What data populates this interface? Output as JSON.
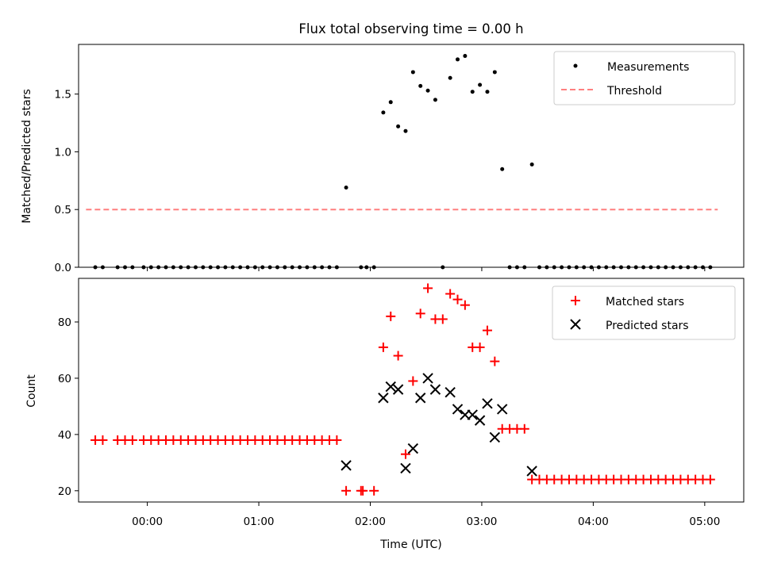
{
  "chart_data": [
    {
      "type": "scatter",
      "title": "Flux total observing time = 0.00 h",
      "ylabel": "Matched/Predicted stars",
      "xlabel": "",
      "ylim": [
        0,
        1.93
      ],
      "yticks": [
        "0.0",
        "0.5",
        "1.0",
        "1.5"
      ],
      "yticks_values": [
        0,
        0.5,
        1.0,
        1.5
      ],
      "legend_position": "top-right",
      "threshold": {
        "name": "Threshold",
        "color": "#ff7f7f",
        "x_start": -33,
        "x_end": 307,
        "value": 0.5
      },
      "series": [
        {
          "name": "Measurements",
          "color": "#000000",
          "points": [
            [
              -28,
              0
            ],
            [
              -24,
              0
            ],
            [
              -16,
              0
            ],
            [
              -12,
              0
            ],
            [
              -8,
              0
            ],
            [
              -2,
              0
            ],
            [
              2,
              0
            ],
            [
              6,
              0
            ],
            [
              10,
              0
            ],
            [
              14,
              0
            ],
            [
              18,
              0
            ],
            [
              22,
              0
            ],
            [
              26,
              0
            ],
            [
              30,
              0
            ],
            [
              34,
              0
            ],
            [
              38,
              0
            ],
            [
              42,
              0
            ],
            [
              46,
              0
            ],
            [
              50,
              0
            ],
            [
              54,
              0
            ],
            [
              58,
              0
            ],
            [
              62,
              0
            ],
            [
              66,
              0
            ],
            [
              70,
              0
            ],
            [
              74,
              0
            ],
            [
              78,
              0
            ],
            [
              82,
              0
            ],
            [
              86,
              0
            ],
            [
              90,
              0
            ],
            [
              94,
              0
            ],
            [
              98,
              0
            ],
            [
              102,
              0
            ],
            [
              107,
              0.69
            ],
            [
              115,
              0
            ],
            [
              118,
              0
            ],
            [
              122,
              0
            ],
            [
              127,
              1.34
            ],
            [
              131,
              1.43
            ],
            [
              135,
              1.22
            ],
            [
              139,
              1.18
            ],
            [
              143,
              1.69
            ],
            [
              147,
              1.57
            ],
            [
              151,
              1.53
            ],
            [
              155,
              1.45
            ],
            [
              159,
              0
            ],
            [
              163,
              1.64
            ],
            [
              167,
              1.8
            ],
            [
              171,
              1.83
            ],
            [
              175,
              1.52
            ],
            [
              179,
              1.58
            ],
            [
              183,
              1.52
            ],
            [
              187,
              1.69
            ],
            [
              191,
              0.85
            ],
            [
              195,
              0
            ],
            [
              199,
              0
            ],
            [
              203,
              0
            ],
            [
              207,
              0.89
            ],
            [
              211,
              0
            ],
            [
              215,
              0
            ],
            [
              219,
              0
            ],
            [
              223,
              0
            ],
            [
              227,
              0
            ],
            [
              231,
              0
            ],
            [
              235,
              0
            ],
            [
              239,
              0
            ],
            [
              243,
              0
            ],
            [
              247,
              0
            ],
            [
              251,
              0
            ],
            [
              255,
              0
            ],
            [
              259,
              0
            ],
            [
              263,
              0
            ],
            [
              267,
              0
            ],
            [
              271,
              0
            ],
            [
              275,
              0
            ],
            [
              279,
              0
            ],
            [
              283,
              0
            ],
            [
              287,
              0
            ],
            [
              291,
              0
            ],
            [
              295,
              0
            ],
            [
              299,
              0
            ],
            [
              303,
              0
            ]
          ]
        }
      ]
    },
    {
      "type": "scatter",
      "title": "",
      "ylabel": "Count",
      "xlabel": "Time (UTC)",
      "ylim": [
        16,
        95.5
      ],
      "yticks": [
        "20",
        "40",
        "60",
        "80"
      ],
      "yticks_values": [
        20,
        40,
        60,
        80
      ],
      "xlim": [
        -37,
        321
      ],
      "xticks": [
        "00:00",
        "01:00",
        "02:00",
        "03:00",
        "04:00",
        "05:00"
      ],
      "xticks_values": [
        0,
        60,
        120,
        180,
        240,
        300
      ],
      "legend_position": "top-right",
      "series": [
        {
          "name": "Matched stars",
          "color": "#ff0000",
          "marker": "plus",
          "points": [
            [
              -28,
              38
            ],
            [
              -24,
              38
            ],
            [
              -16,
              38
            ],
            [
              -12,
              38
            ],
            [
              -8,
              38
            ],
            [
              -2,
              38
            ],
            [
              2,
              38
            ],
            [
              6,
              38
            ],
            [
              10,
              38
            ],
            [
              14,
              38
            ],
            [
              18,
              38
            ],
            [
              22,
              38
            ],
            [
              26,
              38
            ],
            [
              30,
              38
            ],
            [
              34,
              38
            ],
            [
              38,
              38
            ],
            [
              42,
              38
            ],
            [
              46,
              38
            ],
            [
              50,
              38
            ],
            [
              54,
              38
            ],
            [
              58,
              38
            ],
            [
              62,
              38
            ],
            [
              66,
              38
            ],
            [
              70,
              38
            ],
            [
              74,
              38
            ],
            [
              78,
              38
            ],
            [
              82,
              38
            ],
            [
              86,
              38
            ],
            [
              90,
              38
            ],
            [
              94,
              38
            ],
            [
              98,
              38
            ],
            [
              102,
              38
            ],
            [
              107,
              20
            ],
            [
              115,
              20
            ],
            [
              116,
              20
            ],
            [
              122,
              20
            ],
            [
              127,
              71
            ],
            [
              131,
              82
            ],
            [
              135,
              68
            ],
            [
              139,
              33
            ],
            [
              143,
              59
            ],
            [
              147,
              83
            ],
            [
              151,
              92
            ],
            [
              155,
              81
            ],
            [
              159,
              81
            ],
            [
              163,
              90
            ],
            [
              167,
              88
            ],
            [
              171,
              86
            ],
            [
              175,
              71
            ],
            [
              179,
              71
            ],
            [
              183,
              77
            ],
            [
              187,
              66
            ],
            [
              191,
              42
            ],
            [
              195,
              42
            ],
            [
              199,
              42
            ],
            [
              203,
              42
            ],
            [
              207,
              24
            ],
            [
              211,
              24
            ],
            [
              215,
              24
            ],
            [
              219,
              24
            ],
            [
              223,
              24
            ],
            [
              227,
              24
            ],
            [
              231,
              24
            ],
            [
              235,
              24
            ],
            [
              239,
              24
            ],
            [
              243,
              24
            ],
            [
              247,
              24
            ],
            [
              251,
              24
            ],
            [
              255,
              24
            ],
            [
              259,
              24
            ],
            [
              263,
              24
            ],
            [
              267,
              24
            ],
            [
              271,
              24
            ],
            [
              275,
              24
            ],
            [
              279,
              24
            ],
            [
              283,
              24
            ],
            [
              287,
              24
            ],
            [
              291,
              24
            ],
            [
              295,
              24
            ],
            [
              299,
              24
            ],
            [
              303,
              24
            ]
          ]
        },
        {
          "name": "Predicted stars",
          "color": "#000000",
          "marker": "x",
          "points": [
            [
              107,
              29
            ],
            [
              127,
              53
            ],
            [
              131,
              57
            ],
            [
              135,
              56
            ],
            [
              139,
              28
            ],
            [
              143,
              35
            ],
            [
              147,
              53
            ],
            [
              151,
              60
            ],
            [
              155,
              56
            ],
            [
              163,
              55
            ],
            [
              167,
              49
            ],
            [
              171,
              47
            ],
            [
              175,
              47
            ],
            [
              179,
              45
            ],
            [
              183,
              51
            ],
            [
              187,
              39
            ],
            [
              191,
              49
            ],
            [
              207,
              27
            ]
          ]
        }
      ]
    }
  ]
}
